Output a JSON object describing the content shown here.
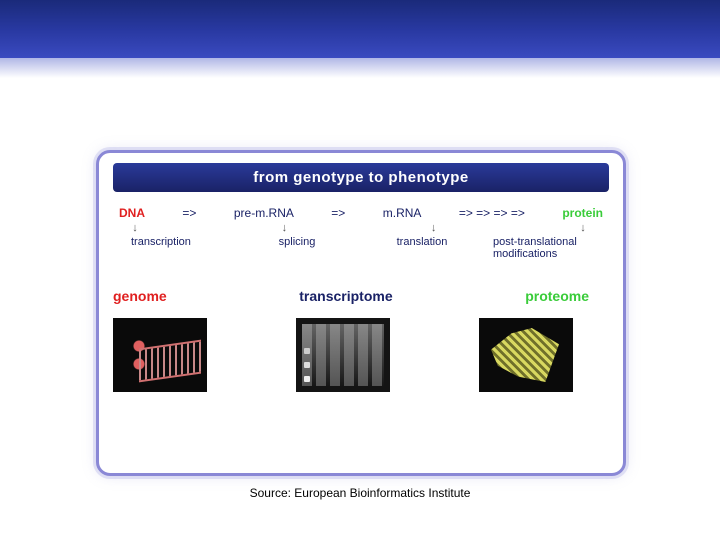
{
  "header": {
    "bar_gradient": [
      "#1a2a7a",
      "#3a4ac0"
    ]
  },
  "diagram": {
    "title": "from  genotype  to  phenotype",
    "border_color": "#8a88d6",
    "flow": {
      "dna": "DNA",
      "a1": "=>",
      "pre_mrna": "pre-m.RNA",
      "a2": "=>",
      "mrna": "m.RNA",
      "a3": "=> => => =>",
      "protein": "protein"
    },
    "down_arrows": [
      "↓",
      "↓",
      "↓",
      "↓"
    ],
    "processes": {
      "transcription": "transcription",
      "splicing": "splicing",
      "translation": "translation",
      "ptm": "post-translational modifications"
    },
    "omics": {
      "genome": "genome",
      "transcriptome": "transcriptome",
      "proteome": "proteome"
    },
    "colors": {
      "dna": "#e02020",
      "protein": "#3acc3a",
      "text": "#1a2266",
      "title_bg": [
        "#2a3a9a",
        "#1a2266"
      ]
    },
    "images": {
      "genome_alt": "dna-helix-illustration",
      "transcriptome_alt": "gel-electrophoresis",
      "proteome_alt": "protein-structure"
    }
  },
  "source": "Source: European Bioinformatics Institute"
}
